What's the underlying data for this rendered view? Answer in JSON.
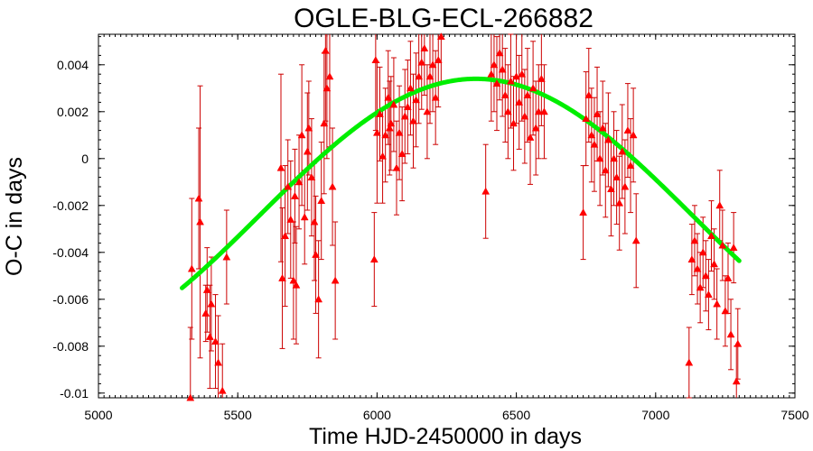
{
  "chart_data": {
    "type": "scatter",
    "title": "OGLE-BLG-ECL-266882",
    "xlabel": "Time HJD-2450000 in days",
    "ylabel": "O-C in days",
    "xlim": [
      5000,
      7500
    ],
    "ylim": [
      -0.0102,
      0.0053
    ],
    "x_ticks": [
      5000,
      5500,
      6000,
      6500,
      7000,
      7500
    ],
    "x_tick_labels": [
      "5000",
      "5500",
      "6000",
      "6500",
      "7000",
      "7500"
    ],
    "y_ticks": [
      -0.01,
      -0.008,
      -0.006,
      -0.004,
      -0.002,
      0,
      0.002,
      0.004
    ],
    "y_tick_labels": [
      "-0.01",
      "-0.008",
      "-0.006",
      "-0.004",
      "-0.002",
      "0",
      "0.002",
      "0.004"
    ],
    "grid": false,
    "colors": {
      "points": "#ff0000",
      "errorbars": "#cc0000",
      "fit": "#00ee00"
    },
    "observations": {
      "marker": "triangle",
      "points": [
        {
          "x": 5330,
          "y": -0.0102,
          "err": 0.003
        },
        {
          "x": 5335,
          "y": -0.0047,
          "err": 0.003
        },
        {
          "x": 5360,
          "y": -0.0017,
          "err": 0.003
        },
        {
          "x": 5365,
          "y": -0.0027,
          "err": 0.0058
        },
        {
          "x": 5385,
          "y": -0.0066,
          "err": 0.0012
        },
        {
          "x": 5390,
          "y": -0.0056,
          "err": 0.0018
        },
        {
          "x": 5400,
          "y": -0.0076,
          "err": 0.0022
        },
        {
          "x": 5405,
          "y": -0.0062,
          "err": 0.002
        },
        {
          "x": 5420,
          "y": -0.0078,
          "err": 0.002
        },
        {
          "x": 5430,
          "y": -0.0087,
          "err": 0.002
        },
        {
          "x": 5445,
          "y": -0.0099,
          "err": 0.002
        },
        {
          "x": 5460,
          "y": -0.0042,
          "err": 0.002
        },
        {
          "x": 5655,
          "y": -0.0004,
          "err": 0.004
        },
        {
          "x": 5660,
          "y": -0.0051,
          "err": 0.003
        },
        {
          "x": 5670,
          "y": -0.0033,
          "err": 0.003
        },
        {
          "x": 5680,
          "y": -0.0012,
          "err": 0.002
        },
        {
          "x": 5690,
          "y": -0.0026,
          "err": 0.0025
        },
        {
          "x": 5700,
          "y": -0.0052,
          "err": 0.0025
        },
        {
          "x": 5705,
          "y": -0.0016,
          "err": 0.002
        },
        {
          "x": 5710,
          "y": -0.0054,
          "err": 0.0025
        },
        {
          "x": 5720,
          "y": -0.001,
          "err": 0.002
        },
        {
          "x": 5730,
          "y": 0.001,
          "err": 0.003
        },
        {
          "x": 5740,
          "y": -0.0025,
          "err": 0.002
        },
        {
          "x": 5750,
          "y": 0.0003,
          "err": 0.0025
        },
        {
          "x": 5755,
          "y": 0.0013,
          "err": 0.002
        },
        {
          "x": 5765,
          "y": -0.0008,
          "err": 0.0025
        },
        {
          "x": 5775,
          "y": -0.0027,
          "err": 0.0025
        },
        {
          "x": 5780,
          "y": -0.0041,
          "err": 0.0025
        },
        {
          "x": 5790,
          "y": -0.006,
          "err": 0.0025
        },
        {
          "x": 5800,
          "y": -0.0018,
          "err": 0.0025
        },
        {
          "x": 5810,
          "y": 0.0015,
          "err": 0.003
        },
        {
          "x": 5815,
          "y": 0.0046,
          "err": 0.003
        },
        {
          "x": 5820,
          "y": 0.003,
          "err": 0.003
        },
        {
          "x": 5830,
          "y": 0.0035,
          "err": 0.003
        },
        {
          "x": 5840,
          "y": -0.0012,
          "err": 0.0025
        },
        {
          "x": 5850,
          "y": -0.0052,
          "err": 0.0025
        },
        {
          "x": 5990,
          "y": -0.0043,
          "err": 0.002
        },
        {
          "x": 5995,
          "y": 0.0042,
          "err": 0.003
        },
        {
          "x": 6000,
          "y": 0.0011,
          "err": 0.003
        },
        {
          "x": 6010,
          "y": 0.0019,
          "err": 0.002
        },
        {
          "x": 6020,
          "y": 0.0001,
          "err": 0.002
        },
        {
          "x": 6030,
          "y": 0.001,
          "err": 0.002
        },
        {
          "x": 6040,
          "y": 0.0026,
          "err": 0.002
        },
        {
          "x": 6045,
          "y": 0.0013,
          "err": 0.002
        },
        {
          "x": 6050,
          "y": 0.0015,
          "err": 0.002
        },
        {
          "x": 6060,
          "y": 0.0023,
          "err": 0.002
        },
        {
          "x": 6070,
          "y": -0.0004,
          "err": 0.002
        },
        {
          "x": 6080,
          "y": 0.0011,
          "err": 0.002
        },
        {
          "x": 6090,
          "y": 0.0002,
          "err": 0.002
        },
        {
          "x": 6100,
          "y": 0.0018,
          "err": 0.002
        },
        {
          "x": 6110,
          "y": 0.0022,
          "err": 0.002
        },
        {
          "x": 6120,
          "y": 0.003,
          "err": 0.002
        },
        {
          "x": 6130,
          "y": 0.0016,
          "err": 0.002
        },
        {
          "x": 6140,
          "y": 0.0025,
          "err": 0.002
        },
        {
          "x": 6150,
          "y": 0.0035,
          "err": 0.002
        },
        {
          "x": 6160,
          "y": 0.0041,
          "err": 0.002
        },
        {
          "x": 6170,
          "y": 0.0047,
          "err": 0.002
        },
        {
          "x": 6180,
          "y": 0.002,
          "err": 0.002
        },
        {
          "x": 6190,
          "y": 0.0035,
          "err": 0.002
        },
        {
          "x": 6200,
          "y": 0.004,
          "err": 0.002
        },
        {
          "x": 6210,
          "y": 0.0026,
          "err": 0.002
        },
        {
          "x": 6220,
          "y": 0.0042,
          "err": 0.002
        },
        {
          "x": 6230,
          "y": 0.0052,
          "err": 0.002
        },
        {
          "x": 6390,
          "y": -0.0014,
          "err": 0.002
        },
        {
          "x": 6410,
          "y": 0.0036,
          "err": 0.002
        },
        {
          "x": 6420,
          "y": 0.004,
          "err": 0.002
        },
        {
          "x": 6430,
          "y": 0.0032,
          "err": 0.002
        },
        {
          "x": 6440,
          "y": 0.0045,
          "err": 0.002
        },
        {
          "x": 6450,
          "y": 0.0038,
          "err": 0.002
        },
        {
          "x": 6460,
          "y": 0.0027,
          "err": 0.002
        },
        {
          "x": 6470,
          "y": 0.002,
          "err": 0.002
        },
        {
          "x": 6480,
          "y": 0.0033,
          "err": 0.002
        },
        {
          "x": 6490,
          "y": 0.0015,
          "err": 0.002
        },
        {
          "x": 6500,
          "y": 0.0035,
          "err": 0.002
        },
        {
          "x": 6510,
          "y": 0.0024,
          "err": 0.002
        },
        {
          "x": 6520,
          "y": 0.0036,
          "err": 0.002
        },
        {
          "x": 6530,
          "y": 0.0018,
          "err": 0.002
        },
        {
          "x": 6540,
          "y": 0.0027,
          "err": 0.002
        },
        {
          "x": 6550,
          "y": 0.0009,
          "err": 0.002
        },
        {
          "x": 6560,
          "y": 0.003,
          "err": 0.002
        },
        {
          "x": 6570,
          "y": 0.0013,
          "err": 0.002
        },
        {
          "x": 6580,
          "y": 0.002,
          "err": 0.002
        },
        {
          "x": 6590,
          "y": 0.0034,
          "err": 0.002
        },
        {
          "x": 6600,
          "y": 0.002,
          "err": 0.002
        },
        {
          "x": 6740,
          "y": -0.0023,
          "err": 0.002
        },
        {
          "x": 6750,
          "y": 0.0017,
          "err": 0.002
        },
        {
          "x": 6760,
          "y": 0.0027,
          "err": 0.002
        },
        {
          "x": 6770,
          "y": 0.001,
          "err": 0.002
        },
        {
          "x": 6780,
          "y": 0.0006,
          "err": 0.002
        },
        {
          "x": 6790,
          "y": 0.0019,
          "err": 0.002
        },
        {
          "x": 6800,
          "y": 0.0,
          "err": 0.002
        },
        {
          "x": 6810,
          "y": 0.0013,
          "err": 0.002
        },
        {
          "x": 6820,
          "y": -0.0005,
          "err": 0.002
        },
        {
          "x": 6830,
          "y": 0.0008,
          "err": 0.002
        },
        {
          "x": 6840,
          "y": -0.0013,
          "err": 0.002
        },
        {
          "x": 6850,
          "y": 0.0,
          "err": 0.002
        },
        {
          "x": 6860,
          "y": -0.0008,
          "err": 0.002
        },
        {
          "x": 6870,
          "y": -0.0019,
          "err": 0.002
        },
        {
          "x": 6880,
          "y": 0.0003,
          "err": 0.002
        },
        {
          "x": 6890,
          "y": -0.0012,
          "err": 0.002
        },
        {
          "x": 6900,
          "y": 0.0012,
          "err": 0.002
        },
        {
          "x": 6910,
          "y": -0.0003,
          "err": 0.002
        },
        {
          "x": 6920,
          "y": 0.001,
          "err": 0.002
        },
        {
          "x": 6930,
          "y": -0.0035,
          "err": 0.002
        },
        {
          "x": 7120,
          "y": -0.0087,
          "err": 0.0015
        },
        {
          "x": 7130,
          "y": -0.0043,
          "err": 0.0015
        },
        {
          "x": 7140,
          "y": -0.0035,
          "err": 0.0015
        },
        {
          "x": 7150,
          "y": -0.0047,
          "err": 0.0015
        },
        {
          "x": 7160,
          "y": -0.0055,
          "err": 0.0015
        },
        {
          "x": 7170,
          "y": -0.004,
          "err": 0.0015
        },
        {
          "x": 7180,
          "y": -0.005,
          "err": 0.0015
        },
        {
          "x": 7190,
          "y": -0.0058,
          "err": 0.0015
        },
        {
          "x": 7200,
          "y": -0.0033,
          "err": 0.0015
        },
        {
          "x": 7210,
          "y": -0.0045,
          "err": 0.0015
        },
        {
          "x": 7220,
          "y": -0.0062,
          "err": 0.0015
        },
        {
          "x": 7230,
          "y": -0.002,
          "err": 0.0015
        },
        {
          "x": 7240,
          "y": -0.0037,
          "err": 0.0015
        },
        {
          "x": 7250,
          "y": -0.0065,
          "err": 0.0015
        },
        {
          "x": 7260,
          "y": -0.0051,
          "err": 0.0015
        },
        {
          "x": 7270,
          "y": -0.0075,
          "err": 0.0015
        },
        {
          "x": 7280,
          "y": -0.0038,
          "err": 0.0015
        },
        {
          "x": 7290,
          "y": -0.0095,
          "err": 0.0015
        },
        {
          "x": 7295,
          "y": -0.0079,
          "err": 0.0015
        }
      ]
    },
    "fit": {
      "type": "sinusoid",
      "offset": -0.0024,
      "amplitude": 0.0058,
      "peak_x": 6355,
      "period": 3100,
      "x_range": [
        5300,
        7300
      ]
    }
  }
}
